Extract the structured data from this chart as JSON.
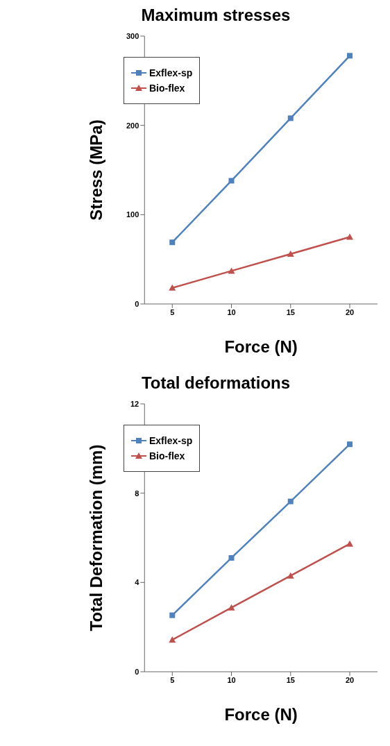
{
  "chart_data": [
    {
      "type": "line",
      "title": "Maximum stresses",
      "xlabel": "Force (N)",
      "ylabel": "Stress (MPa)",
      "categories": [
        "5",
        "10",
        "15",
        "20"
      ],
      "series": [
        {
          "name": "Exflex-sp",
          "color": "#4f81bd",
          "marker": "square",
          "values": [
            69,
            138,
            208,
            278
          ]
        },
        {
          "name": "Bio-flex",
          "color": "#c0504d",
          "marker": "triangle",
          "values": [
            18,
            37,
            56,
            75
          ]
        }
      ],
      "ylim": [
        0,
        300
      ],
      "yticks": [
        0,
        100,
        200,
        300
      ],
      "legend": "top left",
      "grid": false
    },
    {
      "type": "line",
      "title": "Total deformations",
      "xlabel": "Force (N)",
      "ylabel": "Total Deformation (mm)",
      "categories": [
        "5",
        "10",
        "15",
        "20"
      ],
      "series": [
        {
          "name": "Exflex-sp",
          "color": "#4f81bd",
          "marker": "square",
          "values": [
            2.53,
            5.1,
            7.63,
            10.19
          ]
        },
        {
          "name": "Bio-flex",
          "color": "#c0504d",
          "marker": "triangle",
          "values": [
            1.43,
            2.87,
            4.3,
            5.73
          ]
        }
      ],
      "ylim": [
        0,
        12
      ],
      "yticks": [
        0,
        4,
        8,
        12
      ],
      "legend": "top left",
      "grid": false
    }
  ]
}
